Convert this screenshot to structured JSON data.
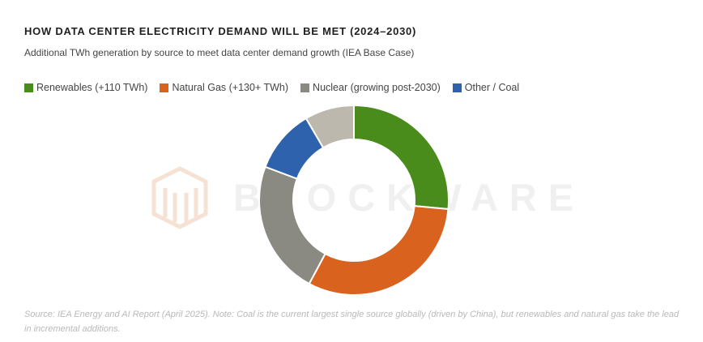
{
  "chart_data": {
    "type": "pie",
    "variant": "doughnut",
    "title": "HOW DATA CENTER ELECTRICITY DEMAND WILL BE MET (2024–2030)",
    "subtitle": "Additional TWh generation by source to meet data center demand growth (IEA Base Case)",
    "legend_position": "top-left",
    "unit": "TWh",
    "slices": [
      {
        "label": "Renewables (+110 TWh)",
        "value": 110,
        "color": "#4a8c1c"
      },
      {
        "label": "Natural Gas (+130+ TWh)",
        "value": 130,
        "color": "#d9621f"
      },
      {
        "label": "Nuclear (growing post-2030)",
        "value": 95,
        "color": "#8a8a83"
      },
      {
        "label": "Other / Coal",
        "value": 45,
        "color": "#2f62ad"
      },
      {
        "label": "",
        "value": 35,
        "color": "#bdb8ad"
      }
    ]
  },
  "watermark": "BLOCKWARE",
  "source_note": "Source: IEA Energy and AI Report (April 2025). Note: Coal is the current largest single source globally (driven by China), but renewables and natural gas take the lead in incremental additions.",
  "colors": {
    "background": "#ffffff",
    "slice_border": "#ffffff",
    "watermark": "#f0f0f0",
    "logo_watermark": "#f6e2d4"
  }
}
